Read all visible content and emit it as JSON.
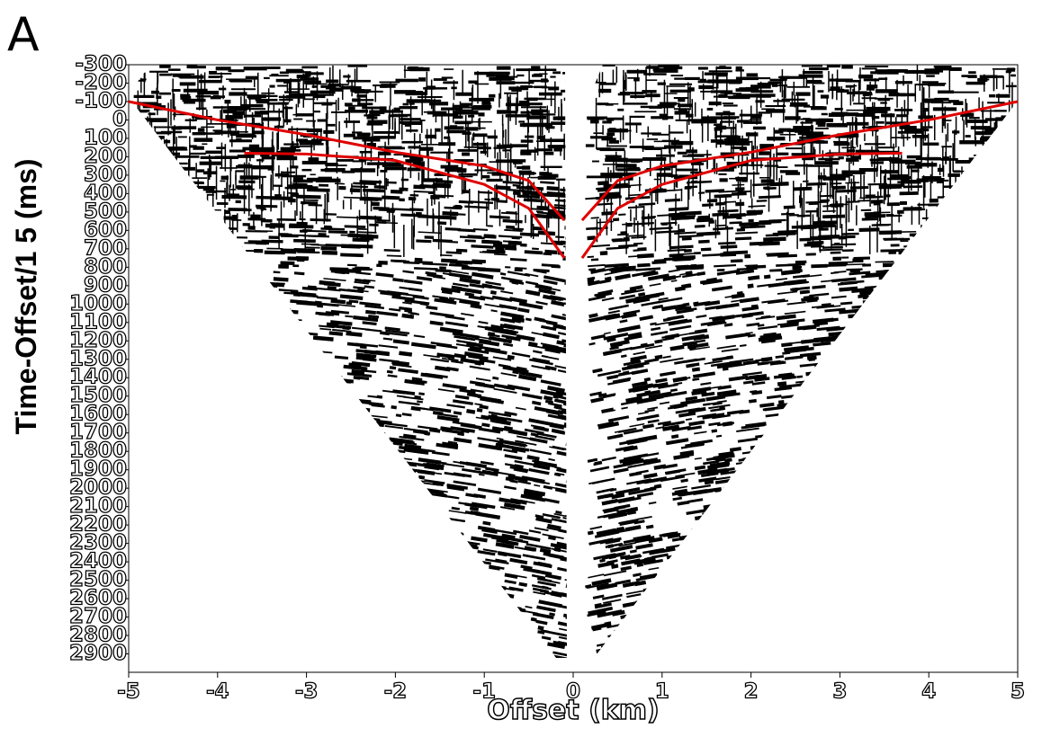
{
  "chart_data": {
    "type": "line",
    "title": "A",
    "xlabel": "Offset (km)",
    "ylabel": "Time-Offset/1 5 (ms)",
    "xlim": [
      -5,
      5
    ],
    "xticks": [
      -5,
      -4,
      -3,
      -2,
      -1,
      0,
      1,
      2,
      3,
      4,
      5
    ],
    "ylim": [
      -300,
      3000
    ],
    "y_inverted": true,
    "yticks": [
      -300,
      -200,
      -100,
      0,
      100,
      200,
      300,
      400,
      500,
      600,
      700,
      800,
      900,
      1000,
      1100,
      1200,
      1300,
      1400,
      1500,
      1600,
      1700,
      1800,
      1900,
      2000,
      2100,
      2200,
      2300,
      2400,
      2500,
      2600,
      2700,
      2800,
      2900
    ],
    "series": [
      {
        "color": "#e00000",
        "x": [
          -5,
          -4,
          -3,
          -2,
          -1,
          -0.5,
          -0.1
        ],
        "values": [
          -100,
          0,
          80,
          175,
          250,
          330,
          545
        ]
      },
      {
        "color": "#e00000",
        "x": [
          -3.7,
          -3,
          -2,
          -1,
          -0.5,
          -0.1
        ],
        "values": [
          180,
          185,
          220,
          350,
          480,
          750
        ]
      },
      {
        "color": "#e00000",
        "x": [
          0.1,
          0.5,
          1,
          2,
          3,
          4,
          5
        ],
        "values": [
          545,
          330,
          250,
          175,
          80,
          0,
          -100
        ]
      },
      {
        "color": "#e00000",
        "x": [
          0.1,
          0.5,
          1,
          2,
          3,
          3.7
        ],
        "values": [
          750,
          480,
          350,
          220,
          185,
          180
        ]
      }
    ]
  }
}
